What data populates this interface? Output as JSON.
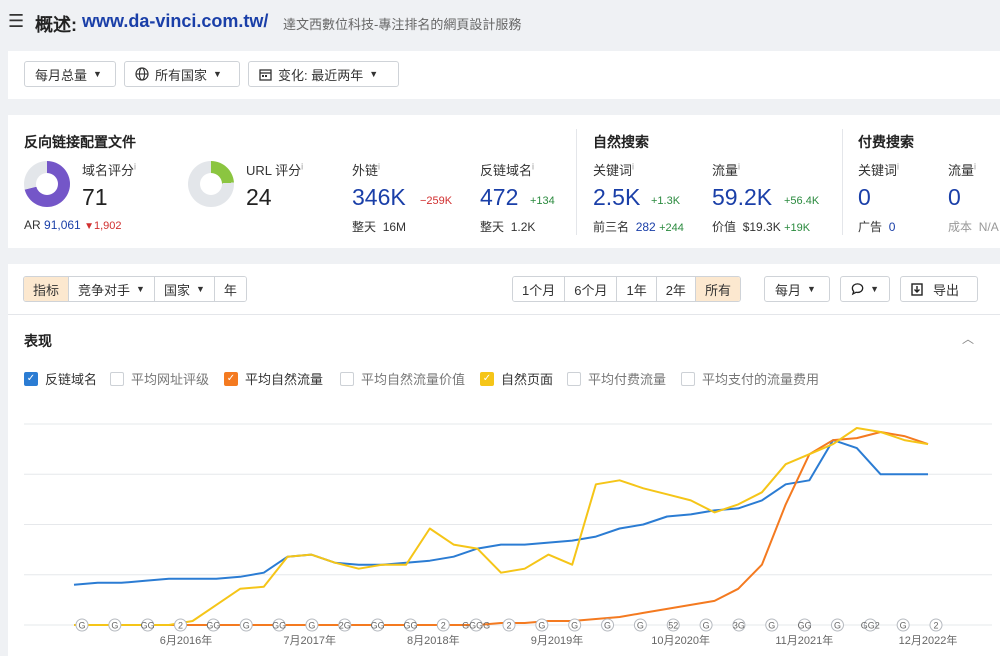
{
  "header": {
    "menu_icon": "☰",
    "title_label": "概述:",
    "domain": "www.da-vinci.com.tw/",
    "description": "達文西數位科技-專注排名的網頁設計服務"
  },
  "filters": {
    "monthly": "每月总量",
    "country": "所有国家",
    "change": "变化: 最近两年"
  },
  "backlink_profile": {
    "title": "反向链接配置文件",
    "dr_label": "域名评分",
    "dr_value": "71",
    "ar_label": "AR",
    "ar_value": "91,061",
    "ar_delta": "1,902",
    "ur_label": "URL 评分",
    "ur_value": "24",
    "dr_fill": 0.71,
    "ur_fill": 0.24,
    "backlinks_label": "外链",
    "backlinks_value": "346K",
    "backlinks_delta": "−259K",
    "backlinks_sub_label": "整天",
    "backlinks_sub_value": "16M",
    "refdomains_label": "反链域名",
    "refdomains_value": "472",
    "refdomains_delta": "+134",
    "refdomains_sub_label": "整天",
    "refdomains_sub_value": "1.2K",
    "info": "i"
  },
  "organic": {
    "title": "自然搜索",
    "keywords_label": "关键词",
    "keywords_value": "2.5K",
    "keywords_delta": "+1.3K",
    "top3_label": "前三名",
    "top3_value": "282",
    "top3_delta": "+244",
    "traffic_label": "流量",
    "traffic_value": "59.2K",
    "traffic_delta": "+56.4K",
    "value_label": "价值",
    "value_value": "$19.3K",
    "value_delta": "+19K"
  },
  "paid": {
    "title": "付费搜索",
    "keywords_label": "关键词",
    "keywords_value": "0",
    "ads_label": "广告",
    "ads_value": "0",
    "traffic_label": "流量",
    "traffic_value": "0",
    "cost_label": "成本",
    "cost_value": "N/A"
  },
  "toolbar": {
    "tabs": [
      "指标",
      "竞争对手",
      "国家",
      "年"
    ],
    "ranges": [
      "1个月",
      "6个月",
      "1年",
      "2年",
      "所有"
    ],
    "interval": "每月",
    "export": "导出"
  },
  "performance": {
    "title": "表现",
    "legend": [
      {
        "label": "反链域名",
        "checked": true,
        "color": "#2b7cd3"
      },
      {
        "label": "平均网址评级",
        "checked": false,
        "color": "#999999"
      },
      {
        "label": "平均自然流量",
        "checked": true,
        "color": "#f47a20"
      },
      {
        "label": "平均自然流量价值",
        "checked": false,
        "color": "#999999"
      },
      {
        "label": "自然页面",
        "checked": true,
        "color": "#f5c518"
      },
      {
        "label": "平均付费流量",
        "checked": false,
        "color": "#999999"
      },
      {
        "label": "平均支付的流量费用",
        "checked": false,
        "color": "#999999"
      }
    ]
  },
  "chart_data": {
    "type": "line",
    "x_ticks": [
      "6月2016年",
      "7月2017年",
      "8月2018年",
      "9月2019年",
      "10月2020年",
      "11月2021年",
      "12月2022年"
    ],
    "y_range": [
      0,
      100
    ],
    "grid": true,
    "annotations": [
      "G",
      "G",
      "GG",
      "2",
      "GG",
      "G",
      "GG",
      "G",
      "2G",
      "GG",
      "GG",
      "2",
      "GGGG",
      "2",
      "G",
      "G",
      "G",
      "G",
      "52",
      "G",
      "3G",
      "G",
      "GG",
      "G",
      "GG2",
      "G",
      "2"
    ],
    "series": [
      {
        "name": "反链域名",
        "color": "#2b7cd3",
        "values": [
          20,
          21,
          21,
          22,
          23,
          23,
          23,
          24,
          26,
          34,
          35,
          31,
          30,
          30,
          31,
          32,
          34,
          38,
          40,
          40,
          41,
          42,
          44,
          48,
          50,
          54,
          55,
          57,
          58,
          62,
          70,
          72,
          92,
          88,
          75,
          75,
          75
        ]
      },
      {
        "name": "平均自然流量",
        "color": "#f47a20",
        "values": [
          0,
          0,
          0,
          0,
          0,
          0,
          0,
          0,
          0,
          0,
          0,
          0,
          0,
          0,
          0,
          0,
          0,
          0,
          1,
          1,
          2,
          2,
          3,
          4,
          6,
          8,
          10,
          12,
          18,
          30,
          60,
          85,
          92,
          93,
          96,
          94,
          90
        ]
      },
      {
        "name": "自然页面",
        "color": "#f5c518",
        "values": [
          0,
          0,
          0,
          0,
          0,
          2,
          10,
          18,
          19,
          34,
          35,
          31,
          28,
          30,
          30,
          48,
          40,
          38,
          26,
          28,
          35,
          30,
          70,
          72,
          68,
          65,
          62,
          56,
          60,
          66,
          80,
          85,
          90,
          98,
          96,
          92,
          90
        ]
      }
    ]
  }
}
